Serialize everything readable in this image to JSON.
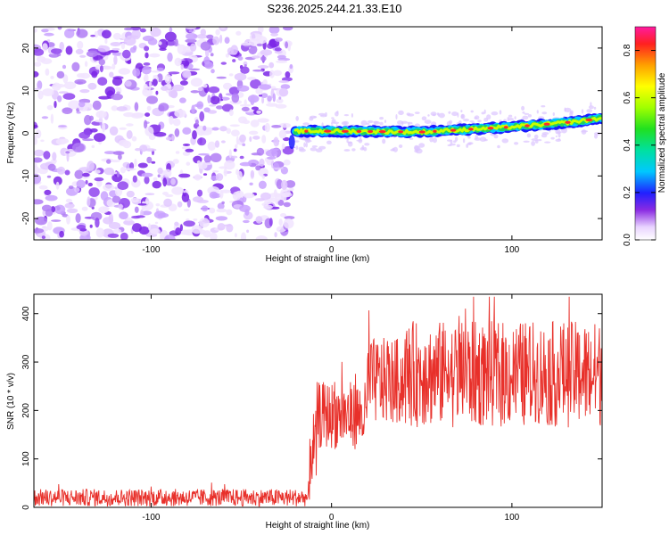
{
  "title": "S236.2025.244.21.33.E10",
  "colors": {
    "signal": "#e8302a",
    "noise": "#7a3cf0",
    "frame": "#000000"
  },
  "chart_data": [
    {
      "type": "heatmap",
      "xlabel": "Height of straight line (km)",
      "ylabel": "Frequency (Hz)",
      "xlim": [
        -165,
        150
      ],
      "ylim": [
        -25,
        25
      ],
      "xticks": [
        -100,
        0,
        100
      ],
      "yticks": [
        -20,
        -10,
        0,
        10,
        20
      ],
      "noise_region_x": [
        -165,
        -22
      ],
      "ridge": {
        "x": [
          -20,
          0,
          50,
          100,
          130,
          150
        ],
        "freq": [
          0.5,
          0.5,
          0.3,
          1.5,
          2.5,
          3.5
        ]
      },
      "colorbar": {
        "label": "Normalized spectral amplitude",
        "range": [
          0,
          0.9
        ],
        "ticks": [
          0.0,
          0.2,
          0.4,
          0.6,
          0.8
        ]
      }
    },
    {
      "type": "line",
      "xlabel": "Height of straight line (km)",
      "ylabel": "SNR (10 * v/v)",
      "xlim": [
        -165,
        150
      ],
      "ylim": [
        0,
        440
      ],
      "xticks": [
        -100,
        0,
        100
      ],
      "yticks": [
        0,
        100,
        200,
        300,
        400
      ],
      "series": [
        {
          "name": "SNR",
          "segments": [
            {
              "x": [
                -165,
                -12
              ],
              "mean": 20,
              "spread": 18
            },
            {
              "x": [
                -12,
                -8
              ],
              "mean": 120,
              "spread": 80
            },
            {
              "x": [
                -8,
                20
              ],
              "mean": 190,
              "spread": 70
            },
            {
              "x": [
                20,
                40
              ],
              "mean": 260,
              "spread": 90
            },
            {
              "x": [
                40,
                150
              ],
              "mean": 275,
              "spread": 110
            }
          ],
          "peak": 435
        }
      ]
    }
  ]
}
